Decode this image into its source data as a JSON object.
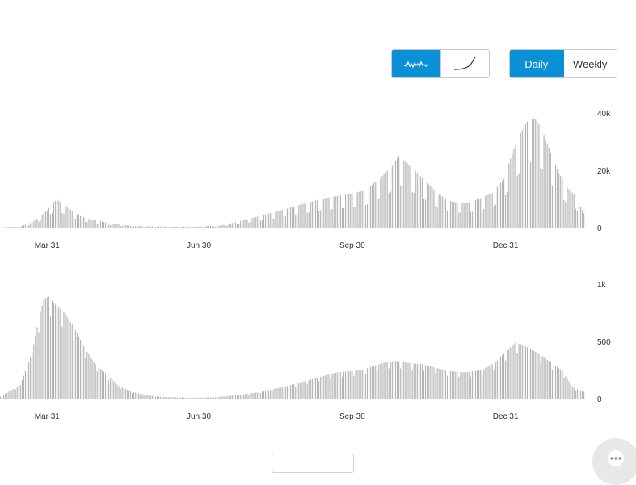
{
  "controls": {
    "mode_options": [
      {
        "icon": "daily-wave-icon",
        "active": true
      },
      {
        "icon": "cumulative-curve-icon",
        "active": false
      }
    ],
    "period_options": [
      {
        "label": "Daily",
        "active": true
      },
      {
        "label": "Weekly",
        "active": false
      }
    ],
    "accent_color": "#0a90d6"
  },
  "bar_color": "#b3b3b3",
  "chart_data": [
    {
      "type": "bar",
      "title": "",
      "xlabel": "",
      "ylabel": "",
      "ylim": [
        0,
        40000
      ],
      "y_tick_labels": [
        "40k",
        "20k",
        "0"
      ],
      "y_tick_values": [
        40000,
        20000,
        0
      ],
      "x_tick_labels": [
        "Mar 31",
        "Jun 30",
        "Sep 30",
        "Dec 31"
      ],
      "x_tick_days": [
        61,
        152,
        244,
        336
      ],
      "day_range": [
        31,
        383
      ],
      "grid": false,
      "anchors": [
        [
          31,
          0
        ],
        [
          45,
          400
        ],
        [
          52,
          1800
        ],
        [
          57,
          4000
        ],
        [
          61,
          6000
        ],
        [
          64,
          8500
        ],
        [
          67,
          9800
        ],
        [
          70,
          8500
        ],
        [
          73,
          7200
        ],
        [
          77,
          5500
        ],
        [
          81,
          4000
        ],
        [
          86,
          3000
        ],
        [
          92,
          2300
        ],
        [
          100,
          1300
        ],
        [
          110,
          700
        ],
        [
          120,
          450
        ],
        [
          135,
          320
        ],
        [
          150,
          320
        ],
        [
          165,
          700
        ],
        [
          175,
          2000
        ],
        [
          185,
          3500
        ],
        [
          195,
          5000
        ],
        [
          210,
          7500
        ],
        [
          225,
          10000
        ],
        [
          240,
          11500
        ],
        [
          252,
          13000
        ],
        [
          262,
          18000
        ],
        [
          268,
          21500
        ],
        [
          272,
          25000
        ],
        [
          278,
          22000
        ],
        [
          284,
          18500
        ],
        [
          290,
          15000
        ],
        [
          296,
          11500
        ],
        [
          304,
          9000
        ],
        [
          312,
          8500
        ],
        [
          320,
          10000
        ],
        [
          328,
          12000
        ],
        [
          335,
          17000
        ],
        [
          340,
          26000
        ],
        [
          345,
          33000
        ],
        [
          350,
          38000
        ],
        [
          354,
          38000
        ],
        [
          358,
          34000
        ],
        [
          363,
          26000
        ],
        [
          368,
          19000
        ],
        [
          373,
          14000
        ],
        [
          378,
          11000
        ],
        [
          383,
          5000
        ]
      ]
    },
    {
      "type": "bar",
      "title": "",
      "xlabel": "",
      "ylabel": "",
      "ylim": [
        0,
        1000
      ],
      "y_tick_labels": [
        "1k",
        "500",
        "0"
      ],
      "y_tick_values": [
        1000,
        500,
        0
      ],
      "x_tick_labels": [
        "Mar 31",
        "Jun 30",
        "Sep 30",
        "Dec 31"
      ],
      "x_tick_days": [
        61,
        152,
        244,
        336
      ],
      "day_range": [
        31,
        383
      ],
      "grid": false,
      "anchors": [
        [
          31,
          0
        ],
        [
          45,
          120
        ],
        [
          52,
          400
        ],
        [
          56,
          700
        ],
        [
          59,
          870
        ],
        [
          62,
          890
        ],
        [
          66,
          820
        ],
        [
          72,
          740
        ],
        [
          78,
          600
        ],
        [
          84,
          430
        ],
        [
          90,
          300
        ],
        [
          96,
          220
        ],
        [
          104,
          110
        ],
        [
          112,
          60
        ],
        [
          120,
          30
        ],
        [
          130,
          15
        ],
        [
          145,
          8
        ],
        [
          160,
          10
        ],
        [
          175,
          30
        ],
        [
          190,
          60
        ],
        [
          205,
          110
        ],
        [
          220,
          170
        ],
        [
          235,
          230
        ],
        [
          250,
          250
        ],
        [
          258,
          290
        ],
        [
          265,
          320
        ],
        [
          270,
          330
        ],
        [
          278,
          310
        ],
        [
          286,
          300
        ],
        [
          294,
          270
        ],
        [
          302,
          240
        ],
        [
          312,
          230
        ],
        [
          322,
          250
        ],
        [
          330,
          320
        ],
        [
          337,
          420
        ],
        [
          342,
          490
        ],
        [
          346,
          470
        ],
        [
          350,
          440
        ],
        [
          355,
          400
        ],
        [
          361,
          340
        ],
        [
          366,
          290
        ],
        [
          370,
          240
        ],
        [
          374,
          150
        ],
        [
          376,
          100
        ],
        [
          383,
          60
        ]
      ]
    }
  ]
}
